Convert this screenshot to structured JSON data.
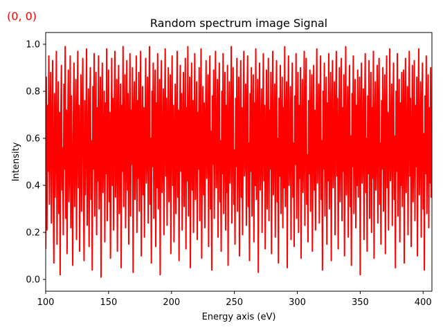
{
  "chart_data": {
    "type": "line",
    "title": "Random spectrum image Signal",
    "xlabel": "Energy axis (eV)",
    "ylabel": "Intensity",
    "xlim": [
      100,
      407
    ],
    "ylim": [
      -0.05,
      1.05
    ],
    "xticks": [
      100,
      150,
      200,
      250,
      300,
      350,
      400
    ],
    "yticks": [
      0.0,
      0.2,
      0.4,
      0.6,
      0.8,
      1.0
    ],
    "xtick_labels": [
      "100",
      "150",
      "200",
      "250",
      "300",
      "350",
      "400"
    ],
    "ytick_labels": [
      "0.0",
      "0.2",
      "0.4",
      "0.6",
      "0.8",
      "1.0"
    ],
    "grid": false,
    "series": [
      {
        "color": "#ff0000",
        "x_start": 100,
        "x_step": 0.5,
        "values": [
          0.13,
          0.86,
          0.21,
          0.74,
          0.46,
          0.95,
          0.32,
          0.67,
          0.88,
          0.24,
          0.58,
          0.93,
          0.41,
          0.07,
          0.79,
          0.35,
          0.62,
          0.97,
          0.15,
          0.53,
          0.84,
          0.28,
          0.71,
          0.02,
          0.66,
          0.91,
          0.38,
          0.56,
          0.19,
          0.83,
          0.47,
          0.99,
          0.26,
          0.72,
          0.11,
          0.64,
          0.89,
          0.33,
          0.51,
          0.95,
          0.22,
          0.78,
          0.44,
          0.06,
          0.69,
          0.92,
          0.31,
          0.57,
          0.85,
          0.17,
          0.63,
          0.97,
          0.39,
          0.74,
          0.12,
          0.55,
          0.87,
          0.29,
          0.68,
          0.94,
          0.43,
          0.08,
          0.76,
          0.36,
          0.61,
          0.98,
          0.23,
          0.52,
          0.81,
          0.14,
          0.7,
          0.9,
          0.34,
          0.59,
          0.04,
          0.82,
          0.47,
          0.96,
          0.27,
          0.65,
          0.88,
          0.19,
          0.73,
          0.42,
          0.95,
          0.3,
          0.57,
          0.86,
          0.01,
          0.67,
          0.92,
          0.37,
          0.54,
          0.8,
          0.16,
          0.75,
          0.45,
          0.98,
          0.25,
          0.62,
          0.89,
          0.33,
          0.71,
          0.09,
          0.58,
          0.94,
          0.4,
          0.77,
          0.21,
          0.66,
          0.97,
          0.35,
          0.53,
          0.85,
          0.12,
          0.69,
          0.91,
          0.28,
          0.6,
          0.83,
          0.05,
          0.74,
          0.46,
          0.99,
          0.31,
          0.64,
          0.87,
          0.22,
          0.56,
          0.93,
          0.38,
          0.79,
          0.15,
          0.61,
          0.96,
          0.27,
          0.72,
          0.49,
          0.9,
          0.03,
          0.68,
          0.84,
          0.34,
          0.57,
          0.95,
          0.2,
          0.76,
          0.43,
          0.88,
          0.29,
          0.65,
          0.97,
          0.1,
          0.59,
          0.82,
          0.36,
          0.73,
          0.18,
          0.63,
          0.94,
          0.41,
          0.55,
          0.86,
          0.24,
          0.7,
          0.99,
          0.32,
          0.6,
          0.07,
          0.8,
          0.48,
          0.92,
          0.26,
          0.67,
          0.89,
          0.14,
          0.75,
          0.39,
          0.96,
          0.3,
          0.58,
          0.85,
          0.02,
          0.71,
          0.93,
          0.37,
          0.52,
          0.81,
          0.19,
          0.66,
          0.98,
          0.44,
          0.77,
          0.23,
          0.62,
          0.9,
          0.33,
          0.54,
          0.87,
          0.11,
          0.69,
          0.95,
          0.4,
          0.74,
          0.16,
          0.6,
          0.83,
          0.28,
          0.57,
          0.97,
          0.35,
          0.72,
          0.08,
          0.65,
          0.91,
          0.46,
          0.79,
          0.21,
          0.63,
          0.88,
          0.31,
          0.55,
          0.94,
          0.13,
          0.73,
          0.42,
          0.99,
          0.27,
          0.68,
          0.86,
          0.05,
          0.6,
          0.92,
          0.38,
          0.76,
          0.2,
          0.64,
          0.96,
          0.34,
          0.53,
          0.84,
          0.17,
          0.71,
          0.47,
          0.9,
          0.25,
          0.67,
          0.98,
          0.09,
          0.58,
          0.82,
          0.36,
          0.75,
          0.22,
          0.61,
          0.93,
          0.43,
          0.56,
          0.87,
          0.14,
          0.7,
          0.95,
          0.3,
          0.63,
          0.04,
          0.78,
          0.49,
          0.89,
          0.26,
          0.66,
          0.97,
          0.39,
          0.54,
          0.85,
          0.18,
          0.72,
          0.92,
          0.33,
          0.59,
          0.12,
          0.8,
          0.45,
          0.96,
          0.28,
          0.65,
          0.88,
          0.21,
          0.74,
          0.37,
          0.91,
          0.06,
          0.62,
          0.84,
          0.41,
          0.57,
          0.99,
          0.24,
          0.69,
          0.9,
          0.32,
          0.55,
          0.15,
          0.77,
          0.48,
          0.94,
          0.29,
          0.67,
          0.86,
          0.1,
          0.6,
          0.93,
          0.35,
          0.73,
          0.19,
          0.64,
          0.97,
          0.44,
          0.52,
          0.83,
          0.23,
          0.71,
          0.95,
          0.31,
          0.58,
          0.08,
          0.79,
          0.46,
          0.9,
          0.27,
          0.66,
          0.87,
          0.16,
          0.75,
          0.4,
          0.98,
          0.34,
          0.61,
          0.85,
          0.03,
          0.68,
          0.92,
          0.38,
          0.56,
          0.81,
          0.2,
          0.63,
          0.96,
          0.42,
          0.74,
          0.13,
          0.59,
          0.89,
          0.3,
          0.54,
          0.94,
          0.25,
          0.72,
          0.47,
          0.88,
          0.11,
          0.65,
          0.97,
          0.36,
          0.57,
          0.83,
          0.18,
          0.7,
          0.93,
          0.33,
          0.6,
          0.07,
          0.77,
          0.44,
          0.91,
          0.28,
          0.64,
          0.86,
          0.22,
          0.73,
          0.39,
          0.99,
          0.31,
          0.62,
          0.84,
          0.05,
          0.67,
          0.95,
          0.4,
          0.55,
          0.82,
          0.17,
          0.69,
          0.92,
          0.35,
          0.58,
          0.14,
          0.78,
          0.49,
          0.96,
          0.26,
          0.66,
          0.88,
          0.2,
          0.74,
          0.43,
          0.9,
          0.09,
          0.61,
          0.85,
          0.37,
          0.56,
          0.97,
          0.23,
          0.71,
          0.94,
          0.32,
          0.53,
          0.16,
          0.76,
          0.45,
          0.89,
          0.29,
          0.68,
          0.87,
          0.12,
          0.63,
          0.91,
          0.38,
          0.72,
          0.21,
          0.6,
          0.98,
          0.41,
          0.57,
          0.83,
          0.24,
          0.7,
          0.95,
          0.34,
          0.59,
          0.04,
          0.8,
          0.47,
          0.92,
          0.27,
          0.65,
          0.86,
          0.15,
          0.75,
          0.42,
          0.96,
          0.3,
          0.62,
          0.88,
          0.08,
          0.67,
          0.93,
          0.39,
          0.54,
          0.84,
          0.19,
          0.69,
          0.97,
          0.44,
          0.77,
          0.13,
          0.58,
          0.9,
          0.33,
          0.55,
          0.94,
          0.25,
          0.73,
          0.46,
          0.87,
          0.1,
          0.64,
          0.99,
          0.36,
          0.56,
          0.82,
          0.18,
          0.71,
          0.91,
          0.31,
          0.61,
          0.06,
          0.79,
          0.48,
          0.95,
          0.28,
          0.66,
          0.85,
          0.22,
          0.74,
          0.4,
          0.89,
          0.35,
          0.63,
          0.86,
          0.02,
          0.68,
          0.92,
          0.41,
          0.57,
          0.81,
          0.17,
          0.7,
          0.96,
          0.37,
          0.6,
          0.12,
          0.78,
          0.45,
          0.93,
          0.26,
          0.65,
          0.88,
          0.2,
          0.73,
          0.43,
          0.97,
          0.09,
          0.62,
          0.84,
          0.38,
          0.55,
          0.91,
          0.24,
          0.72,
          0.94,
          0.32,
          0.58,
          0.15,
          0.76,
          0.47,
          0.9,
          0.29,
          0.67,
          0.87,
          0.11,
          0.64,
          0.95,
          0.39,
          0.71,
          0.21,
          0.59,
          0.98,
          0.42,
          0.54,
          0.83,
          0.23,
          0.69,
          0.92,
          0.34,
          0.61,
          0.05,
          0.8,
          0.46,
          0.96,
          0.27,
          0.66,
          0.85,
          0.16,
          0.75,
          0.4,
          0.88,
          0.31,
          0.63,
          0.89,
          0.07,
          0.68,
          0.94,
          0.37,
          0.56,
          0.82,
          0.19,
          0.7,
          0.97,
          0.44,
          0.77,
          0.14,
          0.57,
          0.91,
          0.33,
          0.55,
          0.93,
          0.25,
          0.74,
          0.48,
          0.86,
          0.1,
          0.65,
          0.98,
          0.36,
          0.58,
          0.84,
          0.18,
          0.72,
          0.92,
          0.3,
          0.62,
          0.04,
          0.78,
          0.45,
          0.95,
          0.28,
          0.64,
          0.87,
          0.22,
          0.73,
          0.41,
          0.9,
          0.35,
          0.6,
          0.85,
          0.68,
          0.15,
          0.58,
          0.74,
          0.12,
          0.88,
          0.66,
          0.31,
          0.69,
          0.49
        ]
      }
    ]
  },
  "corner_label": {
    "text": "(0, 0)",
    "color": "#ff0000"
  }
}
